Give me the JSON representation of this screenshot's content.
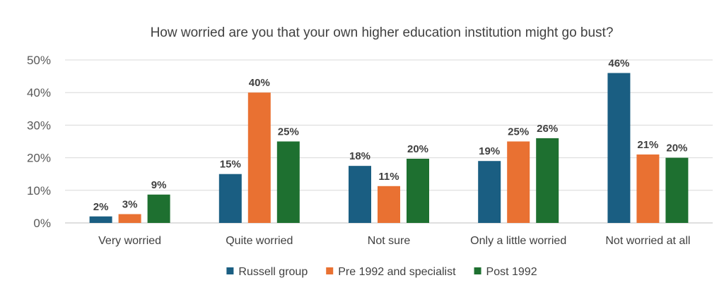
{
  "chart_data": {
    "type": "bar",
    "title": "How worried are you that your own higher education institution might go bust?",
    "categories": [
      "Very worried",
      "Quite worried",
      "Not sure",
      "Only a little worried",
      "Not worried at all"
    ],
    "series": [
      {
        "name": "Russell group",
        "color": "#1a5e82",
        "values": [
          2,
          15,
          17.5,
          19,
          46
        ],
        "labels": [
          "2%",
          "15%",
          "18%",
          "19%",
          "46%"
        ]
      },
      {
        "name": "Pre 1992 and specialist",
        "color": "#e97132",
        "values": [
          2.7,
          40,
          11.3,
          25,
          21
        ],
        "labels": [
          "3%",
          "40%",
          "11%",
          "25%",
          "21%"
        ]
      },
      {
        "name": "Post 1992",
        "color": "#1e7030",
        "values": [
          8.7,
          25,
          19.7,
          26,
          20
        ],
        "labels": [
          "9%",
          "25%",
          "20%",
          "26%",
          "20%"
        ]
      }
    ],
    "ylim": [
      0,
      50
    ],
    "yticks": [
      "0%",
      "10%",
      "20%",
      "30%",
      "40%",
      "50%"
    ],
    "grid": true,
    "legend": "bottom"
  }
}
